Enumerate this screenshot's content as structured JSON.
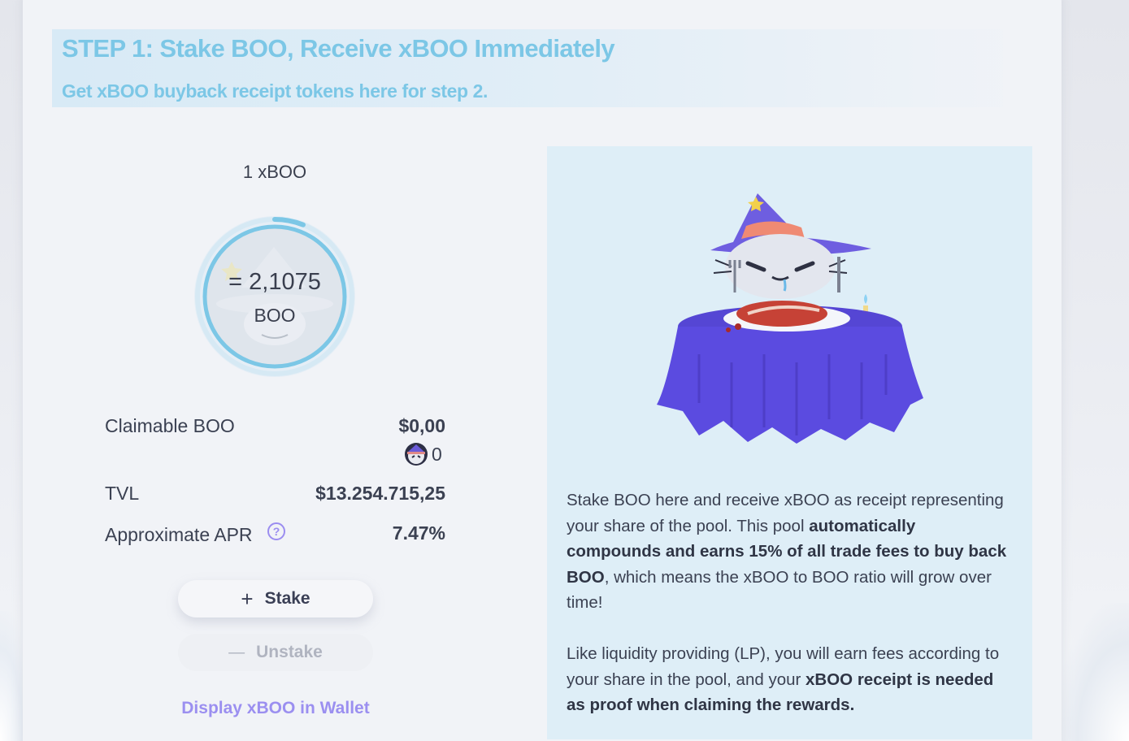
{
  "step": {
    "title": "STEP 1: Stake BOO, Receive xBOO Immediately",
    "subtitle": "Get xBOO buyback receipt tokens here for step 2."
  },
  "ratio": {
    "label": "1 xBOO",
    "value": "= 2,1075",
    "unit": "BOO",
    "progress_fraction": 0.06
  },
  "stats": {
    "claimable_label": "Claimable BOO",
    "claimable_usd": "$0,00",
    "claimable_amount": "0",
    "tvl_label": "TVL",
    "tvl_value": "$13.254.715,25",
    "apr_label": "Approximate APR",
    "apr_value": "7.47%",
    "help_glyph": "?"
  },
  "actions": {
    "stake_label": "Stake",
    "stake_glyph": "+",
    "unstake_label": "Unstake",
    "unstake_glyph": "—",
    "wallet_link": "Display xBOO in Wallet"
  },
  "info": {
    "p1_a": "Stake BOO here and receive xBOO as receipt representing your share of the pool. This pool ",
    "p1_b": "automatically compounds and earns 15% of all trade fees to buy back BOO",
    "p1_c": ", which means the xBOO to BOO ratio will grow over time!",
    "p2_a": "Like liquidity providing (LP), you will earn fees according to your share in the pool, and your ",
    "p2_b": "xBOO receipt is needed as proof when claiming the rewards."
  },
  "colors": {
    "accent_blue": "#7cc7e6",
    "accent_purple": "#9b8ff0",
    "text_dark": "#3b4152",
    "panel_bg": "#deeef7"
  },
  "icons": [
    "boo-ghost-icon",
    "help-icon",
    "plus-icon",
    "minus-icon",
    "boo-token-icon",
    "wizard-ghost-illustration"
  ]
}
